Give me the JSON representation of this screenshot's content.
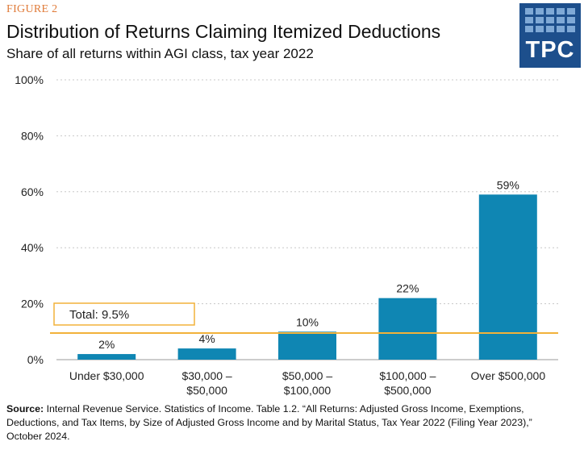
{
  "header": {
    "figure_label": "FIGURE 2",
    "title": "Distribution of Returns Claiming Itemized Deductions",
    "subtitle": "Share of all returns within AGI class, tax year 2022"
  },
  "logo": {
    "text": "TPC",
    "background": "#1d4f8c",
    "tile_color": "#7fa9d6"
  },
  "chart_data": {
    "type": "bar",
    "categories": [
      [
        "Under $30,000"
      ],
      [
        "$30,000 –",
        "$50,000"
      ],
      [
        "$50,000 –",
        "$100,000"
      ],
      [
        "$100,000 –",
        "$500,000"
      ],
      [
        "Over $500,000"
      ]
    ],
    "values": [
      2,
      4,
      10,
      22,
      59
    ],
    "value_labels": [
      "2%",
      "4%",
      "10%",
      "22%",
      "59%"
    ],
    "ylim": [
      0,
      100
    ],
    "yticks": [
      0,
      20,
      40,
      60,
      80,
      100
    ],
    "ytick_labels": [
      "0%",
      "20%",
      "40%",
      "60%",
      "80%",
      "100%"
    ],
    "grid": true,
    "reference_line": {
      "value": 9.5,
      "label": "Total: 9.5%"
    },
    "colors": {
      "bar": "#0f86b3",
      "reference": "#f2b23a",
      "grid": "#c8c8c8",
      "text": "#222222"
    }
  },
  "source": {
    "label": "Source:",
    "text": " Internal Revenue Service. Statistics of Income. Table 1.2. “All Returns: Adjusted Gross Income, Exemptions, Deductions, and Tax Items, by Size of Adjusted Gross Income and by Marital Status, Tax Year 2022 (Filing Year 2023),” October 2024."
  }
}
